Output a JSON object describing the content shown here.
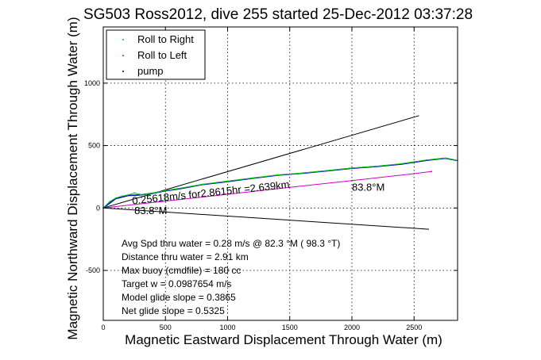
{
  "chart_data": {
    "type": "line",
    "title": "SG503 Ross2012, dive 255 started 25-Dec-2012 03:37:28",
    "xlabel": "Magnetic Eastward Displacement Through Water (m)",
    "ylabel": "Magnetic Northward Displacement Through Water (m)",
    "xlim": [
      0,
      2850
    ],
    "ylim": [
      -900,
      1450
    ],
    "xticks": [
      0,
      500,
      1000,
      1500,
      2000,
      2500
    ],
    "yticks": [
      -500,
      0,
      500,
      1000
    ],
    "grid": true,
    "legend_position": "top-left",
    "legend": [
      "Roll to Right",
      "Roll to Left",
      "pump"
    ],
    "series": [
      {
        "name": "Roll to Right",
        "color": "#00cc00",
        "x": [
          0,
          50,
          100,
          150,
          200,
          250,
          300,
          350,
          400,
          500,
          600,
          800,
          1000,
          1200,
          1400,
          1600,
          1800,
          2000,
          2200,
          2400,
          2600,
          2750,
          2850
        ],
        "y": [
          0,
          50,
          80,
          95,
          105,
          120,
          108,
          110,
          120,
          140,
          155,
          190,
          215,
          240,
          265,
          280,
          300,
          320,
          335,
          355,
          385,
          400,
          382
        ]
      },
      {
        "name": "Roll to Left",
        "color": "#cc00cc",
        "x": [
          0,
          500,
          1000,
          1500,
          2000,
          2500,
          2640
        ],
        "y": [
          0,
          55,
          110,
          165,
          220,
          275,
          292
        ]
      },
      {
        "name": "pump",
        "color": "#000000",
        "x": [],
        "y": []
      }
    ],
    "lines": [
      {
        "color": "#000000",
        "x": [
          0,
          2540
        ],
        "y": [
          0,
          740
        ]
      },
      {
        "color": "#000000",
        "x": [
          0,
          2620
        ],
        "y": [
          0,
          -170
        ]
      },
      {
        "color": "#0000cc",
        "x": [
          0,
          100,
          200,
          300,
          400,
          500,
          600,
          800,
          1000,
          1200,
          1400,
          1600,
          1800,
          2000,
          2200,
          2400,
          2600,
          2750,
          2850
        ],
        "y": [
          0,
          75,
          100,
          105,
          118,
          138,
          152,
          188,
          212,
          238,
          262,
          278,
          298,
          318,
          333,
          352,
          382,
          398,
          380
        ]
      }
    ],
    "annotations": [
      {
        "text": "0.25618m/s for2.8615hr =2.639km",
        "x": 235,
        "y": 30,
        "rotation": -6
      },
      {
        "text": "83.8°M",
        "x": 2000,
        "y": 140
      },
      {
        "text": "83.8°M",
        "x": 250,
        "y": -50
      }
    ],
    "info_lines": [
      "Avg Spd thru water =  0.28 m/s @  82.3   °M ( 98.3 °T)",
      "Distance thru water =  2.91 km",
      "Max buoy (cmdfile) = 180 cc",
      "Target w = 0.0987654 m/s",
      "Model glide slope = 0.3865",
      "Net glide slope = 0.5325"
    ]
  }
}
